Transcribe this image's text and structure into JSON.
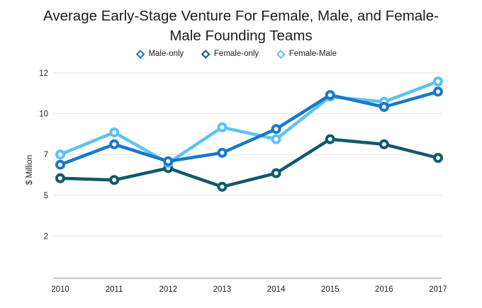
{
  "title": {
    "line1": "Average Early-Stage Venture For Female, Male, and Female-",
    "line2": "Male Founding Teams",
    "full": "Average Early-Stage Venture For Female, Male, and Female-Male Founding Teams"
  },
  "chart_data": {
    "type": "line",
    "title": "Average Early-Stage Venture For Female, Male, and Female-Male Founding Teams",
    "x": [
      "2010",
      "2011",
      "2012",
      "2013",
      "2014",
      "2015",
      "2016",
      "2017"
    ],
    "xlabel": "",
    "ylabel": "$ Million",
    "ylim": [
      0,
      12
    ],
    "grid": true,
    "legend_position": "top",
    "yticks": [
      {
        "label": "12",
        "value": 12
      },
      {
        "label": "10",
        "value": 9.6
      },
      {
        "label": "7",
        "value": 7.2
      },
      {
        "label": "5",
        "value": 4.8
      },
      {
        "label": "2",
        "value": 2.4
      }
    ],
    "series": [
      {
        "name": "Male-only",
        "color": "#1878cc",
        "marker": "circle-ring",
        "values": [
          6.6,
          7.8,
          6.8,
          7.3,
          8.7,
          10.7,
          10.0,
          10.9
        ]
      },
      {
        "name": "Female-only",
        "color": "#10596d",
        "marker": "circle-ring",
        "values": [
          5.8,
          5.7,
          6.4,
          5.3,
          6.1,
          8.1,
          7.8,
          7.0
        ]
      },
      {
        "name": "Female-Male",
        "color": "#5cc3f3",
        "marker": "circle-ring",
        "values": [
          7.2,
          8.5,
          6.7,
          8.8,
          8.1,
          10.6,
          10.3,
          11.5
        ]
      }
    ],
    "draw_order": [
      1,
      2,
      0
    ]
  },
  "style_colors": {
    "gridline": "#e3e3e3",
    "axis_line": "#b3b3b3",
    "text": "#1d1d1f"
  }
}
